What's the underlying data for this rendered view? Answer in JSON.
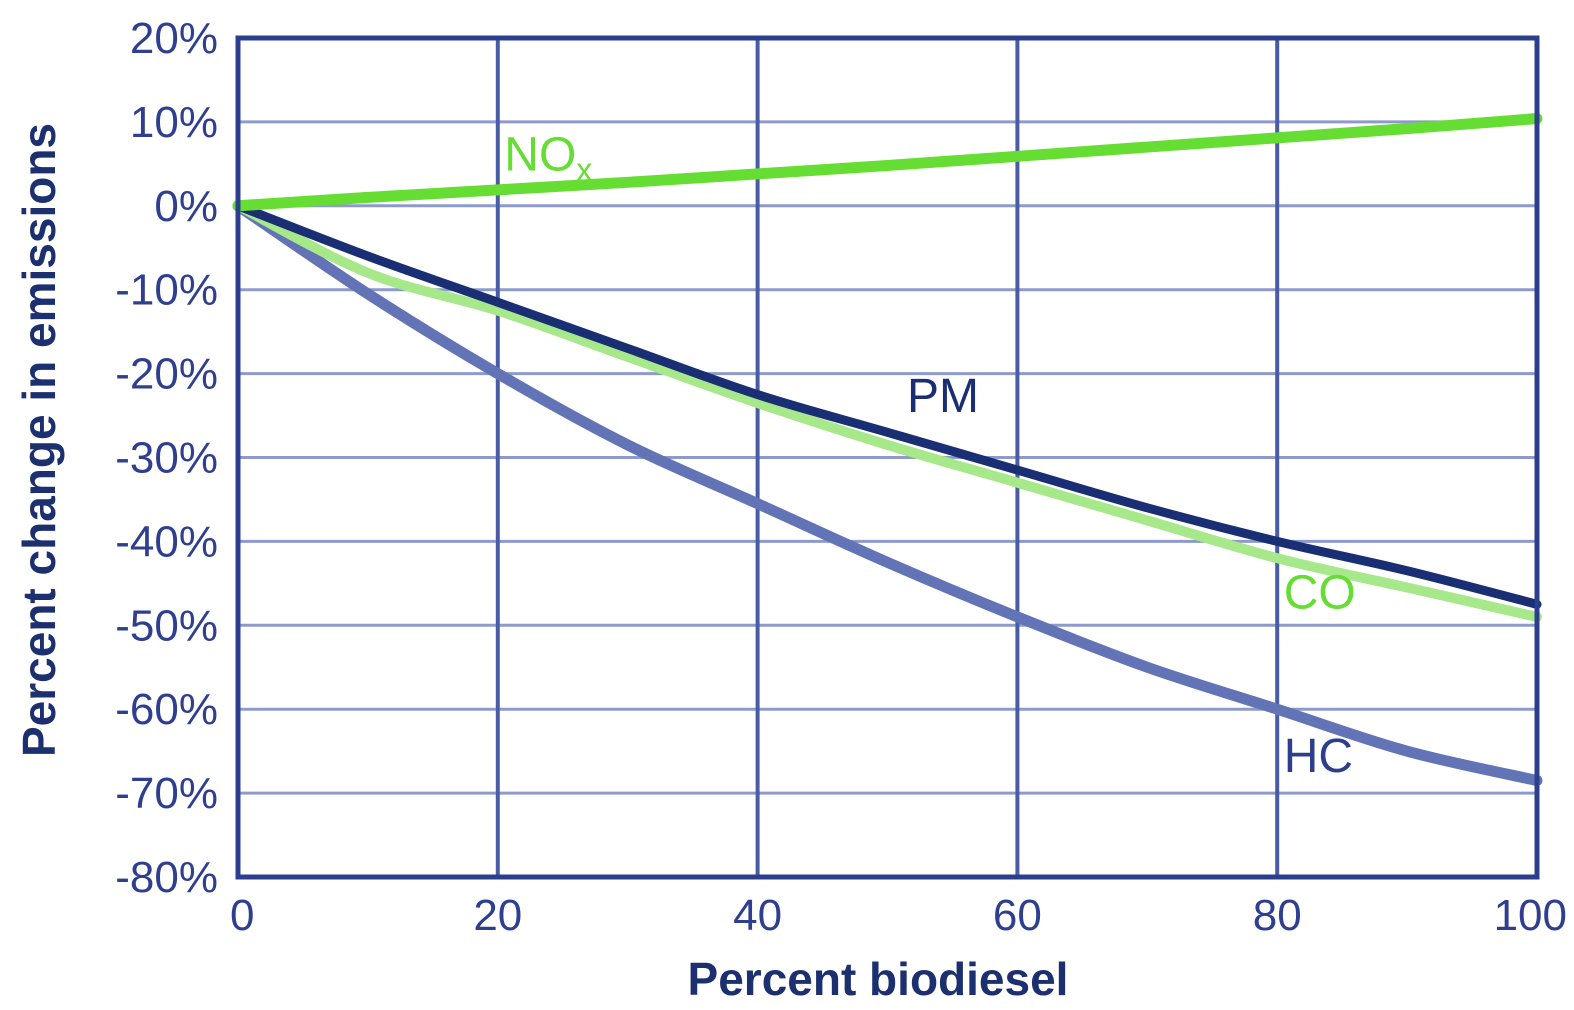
{
  "chart_data": {
    "type": "line",
    "xlabel": "Percent biodiesel",
    "ylabel": "Percent change in emissions",
    "xlim": [
      0,
      100
    ],
    "ylim": [
      -80,
      20
    ],
    "x_ticks": [
      0,
      20,
      40,
      60,
      80,
      100
    ],
    "x_tick_labels": [
      "0",
      "20",
      "40",
      "60",
      "80",
      "100"
    ],
    "y_ticks": [
      20,
      10,
      0,
      -10,
      -20,
      -30,
      -40,
      -50,
      -60,
      -70,
      -80
    ],
    "y_tick_labels": [
      "20%",
      "10%",
      "0%",
      "-10%",
      "-20%",
      "-30%",
      "-40%",
      "-50%",
      "-60%",
      "-70%",
      "-80%"
    ],
    "grid": true,
    "series": [
      {
        "name": "NOx",
        "label_main": "NO",
        "label_sub": "x",
        "color": "#66dd33",
        "x": [
          0,
          10,
          20,
          30,
          40,
          50,
          60,
          70,
          80,
          90,
          100
        ],
        "y": [
          0,
          1,
          1.9,
          2.8,
          3.8,
          4.8,
          5.9,
          7,
          8.1,
          9.2,
          10.4
        ]
      },
      {
        "name": "PM",
        "color": "#1a2f73",
        "x": [
          0,
          10,
          20,
          30,
          40,
          50,
          60,
          70,
          80,
          90,
          100
        ],
        "y": [
          0,
          -6,
          -11.5,
          -17,
          -22.5,
          -27,
          -31.5,
          -36,
          -40,
          -43.5,
          -47.5
        ]
      },
      {
        "name": "CO",
        "color": "#a6e88a",
        "label_color": "#66dd33",
        "x": [
          0,
          10,
          20,
          30,
          40,
          50,
          60,
          70,
          80,
          90,
          100
        ],
        "y": [
          0,
          -8,
          -12.5,
          -18,
          -23.5,
          -28.5,
          -33,
          -37.5,
          -42,
          -45.5,
          -49
        ]
      },
      {
        "name": "HC",
        "color": "#6274b5",
        "label_color": "#2c3f8c",
        "x": [
          0,
          10,
          20,
          30,
          40,
          50,
          60,
          70,
          80,
          90,
          100
        ],
        "y": [
          0,
          -10.5,
          -20,
          -28.5,
          -35.5,
          -42.5,
          -49,
          -55,
          -60,
          -65,
          -68.5
        ]
      }
    ]
  }
}
